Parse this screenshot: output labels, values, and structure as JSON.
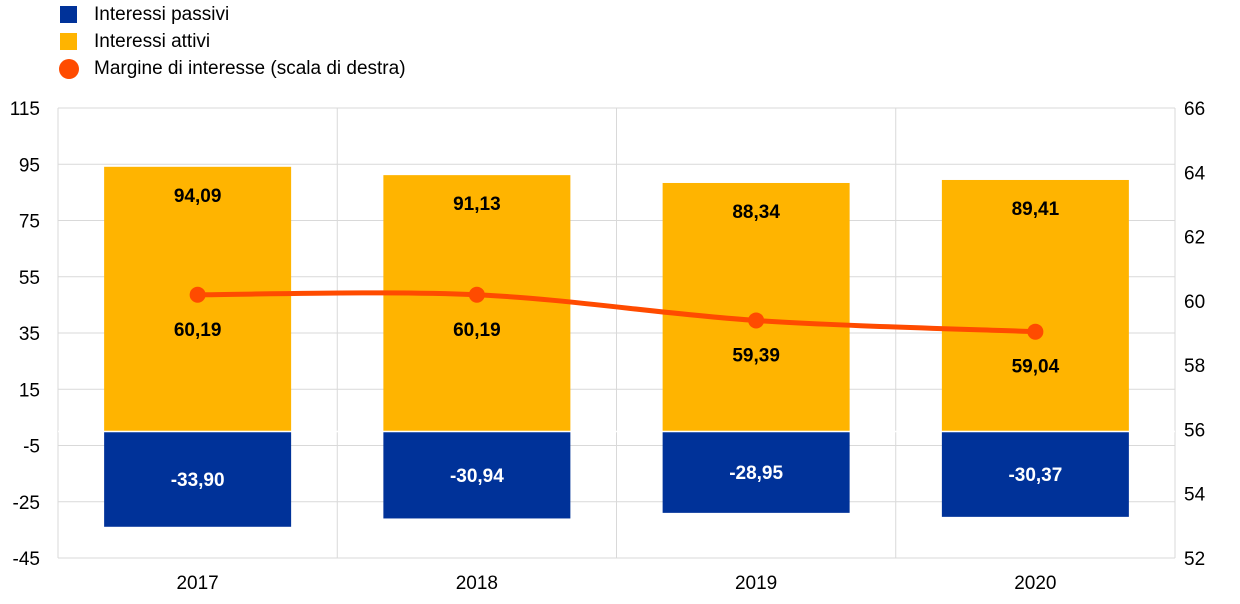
{
  "chart_data": {
    "type": "bar",
    "categories": [
      "2017",
      "2018",
      "2019",
      "2020"
    ],
    "series": [
      {
        "name": "Interessi passivi",
        "kind": "bar",
        "color": "#003299",
        "values": [
          -33.9,
          -30.94,
          -28.95,
          -30.37
        ],
        "labels": [
          "-33,90",
          "-30,94",
          "-28,95",
          "-30,37"
        ]
      },
      {
        "name": "Interessi attivi",
        "kind": "bar",
        "color": "#FFB400",
        "values": [
          94.09,
          91.13,
          88.34,
          89.41
        ],
        "labels": [
          "94,09",
          "91,13",
          "88,34",
          "89,41"
        ]
      },
      {
        "name": "Margine di interesse (scala di destra)",
        "kind": "line",
        "axis": "right",
        "color": "#FF4B00",
        "values": [
          60.19,
          60.19,
          59.39,
          59.04
        ],
        "labels": [
          "60,19",
          "60,19",
          "59,39",
          "59,04"
        ]
      }
    ],
    "ylim": [
      -45,
      115
    ],
    "yticks": [
      "115",
      "95",
      "75",
      "55",
      "35",
      "15",
      "-5",
      "-25",
      "-45"
    ],
    "y2lim": [
      52,
      66
    ],
    "y2ticks": [
      "66",
      "64",
      "62",
      "60",
      "58",
      "56",
      "54",
      "52"
    ],
    "grid": true,
    "legend_position": "top-left"
  }
}
